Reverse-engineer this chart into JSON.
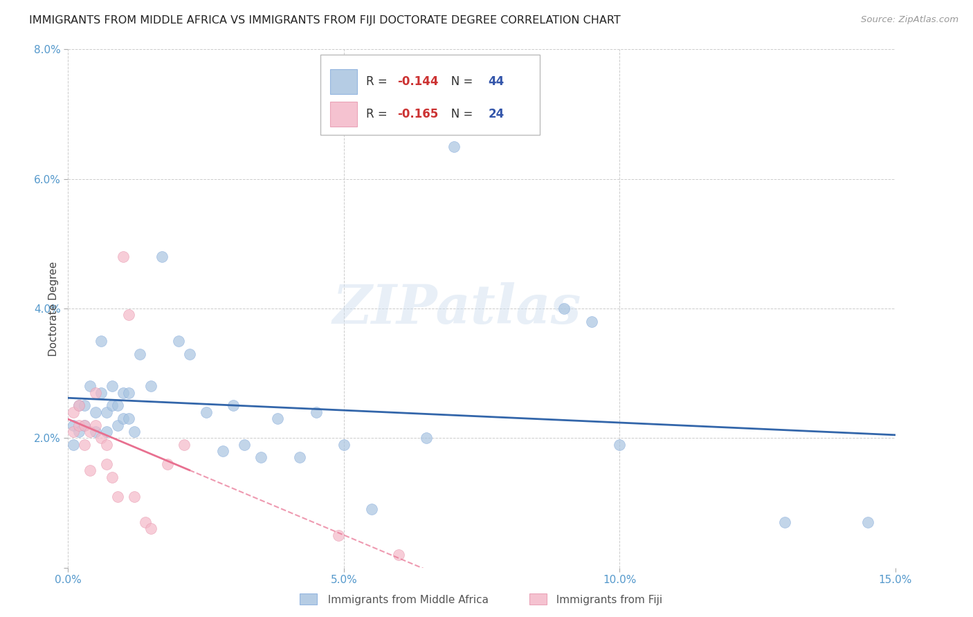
{
  "title": "IMMIGRANTS FROM MIDDLE AFRICA VS IMMIGRANTS FROM FIJI DOCTORATE DEGREE CORRELATION CHART",
  "source": "Source: ZipAtlas.com",
  "ylabel": "Doctorate Degree",
  "xlim": [
    0.0,
    0.15
  ],
  "ylim": [
    0.0,
    0.08
  ],
  "xticks": [
    0.0,
    0.05,
    0.1,
    0.15
  ],
  "xtick_labels": [
    "0.0%",
    "5.0%",
    "10.0%",
    "15.0%"
  ],
  "yticks": [
    0.0,
    0.02,
    0.04,
    0.06,
    0.08
  ],
  "ytick_labels": [
    "",
    "2.0%",
    "4.0%",
    "6.0%",
    "8.0%"
  ],
  "legend_labels": [
    "Immigrants from Middle Africa",
    "Immigrants from Fiji"
  ],
  "blue_color": "#A8C4E0",
  "pink_color": "#F4B8C8",
  "blue_line_color": "#3366AA",
  "pink_line_color": "#E87090",
  "blue_R": "-0.144",
  "blue_N": "44",
  "pink_R": "-0.165",
  "pink_N": "24",
  "blue_scatter_x": [
    0.001,
    0.001,
    0.002,
    0.002,
    0.003,
    0.003,
    0.004,
    0.005,
    0.005,
    0.006,
    0.006,
    0.007,
    0.007,
    0.008,
    0.008,
    0.009,
    0.009,
    0.01,
    0.01,
    0.011,
    0.011,
    0.012,
    0.013,
    0.015,
    0.017,
    0.02,
    0.022,
    0.025,
    0.028,
    0.03,
    0.032,
    0.035,
    0.038,
    0.042,
    0.045,
    0.05,
    0.055,
    0.065,
    0.07,
    0.09,
    0.095,
    0.1,
    0.13,
    0.145
  ],
  "blue_scatter_y": [
    0.019,
    0.022,
    0.021,
    0.025,
    0.025,
    0.022,
    0.028,
    0.024,
    0.021,
    0.035,
    0.027,
    0.024,
    0.021,
    0.028,
    0.025,
    0.025,
    0.022,
    0.027,
    0.023,
    0.027,
    0.023,
    0.021,
    0.033,
    0.028,
    0.048,
    0.035,
    0.033,
    0.024,
    0.018,
    0.025,
    0.019,
    0.017,
    0.023,
    0.017,
    0.024,
    0.019,
    0.009,
    0.02,
    0.065,
    0.04,
    0.038,
    0.019,
    0.007,
    0.007
  ],
  "pink_scatter_x": [
    0.001,
    0.001,
    0.002,
    0.002,
    0.003,
    0.003,
    0.004,
    0.004,
    0.005,
    0.005,
    0.006,
    0.007,
    0.007,
    0.008,
    0.009,
    0.01,
    0.011,
    0.012,
    0.014,
    0.015,
    0.018,
    0.021,
    0.049,
    0.06
  ],
  "pink_scatter_y": [
    0.024,
    0.021,
    0.025,
    0.022,
    0.022,
    0.019,
    0.015,
    0.021,
    0.027,
    0.022,
    0.02,
    0.019,
    0.016,
    0.014,
    0.011,
    0.048,
    0.039,
    0.011,
    0.007,
    0.006,
    0.016,
    0.019,
    0.005,
    0.002
  ],
  "watermark_text": "ZIPatlas",
  "background_color": "#FFFFFF",
  "grid_color": "#CCCCCC",
  "title_color": "#222222",
  "tick_label_color": "#5599CC",
  "r_value_color": "#CC3333",
  "n_value_color": "#3355AA"
}
